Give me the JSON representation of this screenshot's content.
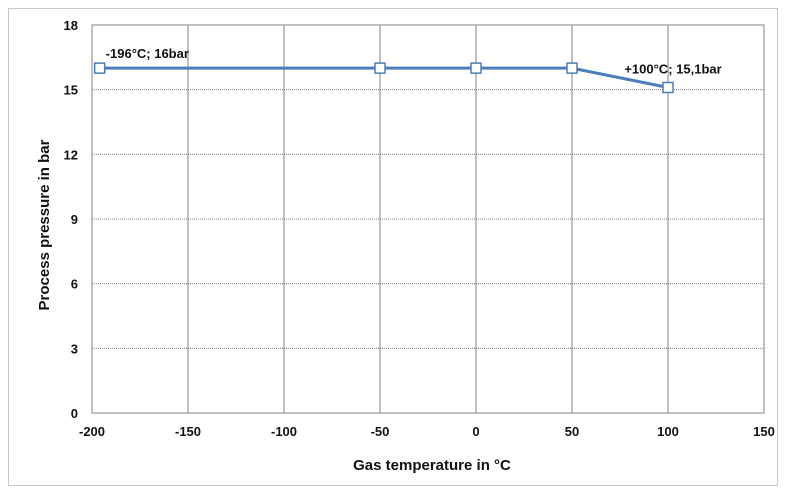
{
  "chart_data": {
    "type": "line",
    "title": "",
    "xlabel": "Gas temperature in °C",
    "ylabel": "Process pressure in bar",
    "xlim": [
      -200,
      150
    ],
    "ylim": [
      0,
      18
    ],
    "x_ticks": [
      "-200",
      "-150",
      "-100",
      "-50",
      "0",
      "50",
      "100",
      "150"
    ],
    "y_ticks": [
      "0",
      "3",
      "6",
      "9",
      "12",
      "15",
      "18"
    ],
    "grid": true,
    "legend": "none",
    "series": [
      {
        "color": "#4a7ebb",
        "marker": "square",
        "x": [
          -196,
          -50,
          0,
          50,
          100
        ],
        "y": [
          16,
          16,
          16,
          16,
          15.1
        ]
      }
    ],
    "annotations": [
      {
        "text": "-196°C; 16bar",
        "x": -196,
        "y": 16
      },
      {
        "text": "+100°C; 15,1bar",
        "x": 100,
        "y": 15.1
      }
    ]
  }
}
